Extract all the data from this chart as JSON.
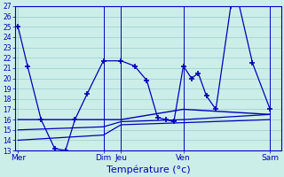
{
  "bg_color": "#cceee8",
  "grid_color": "#99cccc",
  "line_color": "#0000bb",
  "spine_color": "#0000bb",
  "xlabel": "Température (°c)",
  "ylabel_min": 13,
  "ylabel_max": 27,
  "x_ticks_labels": [
    "Mer",
    "Dim",
    "Jeu",
    "Ven",
    "Sam"
  ],
  "x_ticks_pos": [
    0.0,
    0.315,
    0.38,
    0.61,
    0.93
  ],
  "series1_x": [
    0.0,
    0.035,
    0.085,
    0.135,
    0.175,
    0.21,
    0.255,
    0.315,
    0.38,
    0.43,
    0.475,
    0.515,
    0.545,
    0.575,
    0.61,
    0.64,
    0.665,
    0.695,
    0.73,
    0.785,
    0.815,
    0.865,
    0.93
  ],
  "series1_y": [
    25,
    21.2,
    16.0,
    13.2,
    13.0,
    16.0,
    18.5,
    21.7,
    21.7,
    21.2,
    19.8,
    16.2,
    16.0,
    15.8,
    21.2,
    20.0,
    20.5,
    18.3,
    17.0,
    27.0,
    27.2,
    21.5,
    17.0
  ],
  "series2_x": [
    0.0,
    0.1,
    0.315,
    0.38,
    0.61,
    0.93
  ],
  "series2_y": [
    16.0,
    16.0,
    16.0,
    16.0,
    17.0,
    16.5
  ],
  "series3_x": [
    0.0,
    0.315,
    0.38,
    0.61,
    0.93
  ],
  "series3_y": [
    14.0,
    14.5,
    15.5,
    15.7,
    16.0
  ],
  "series4_x": [
    0.0,
    0.315,
    0.38,
    0.61,
    0.93
  ],
  "series4_y": [
    15.0,
    15.3,
    15.8,
    16.0,
    16.5
  ]
}
